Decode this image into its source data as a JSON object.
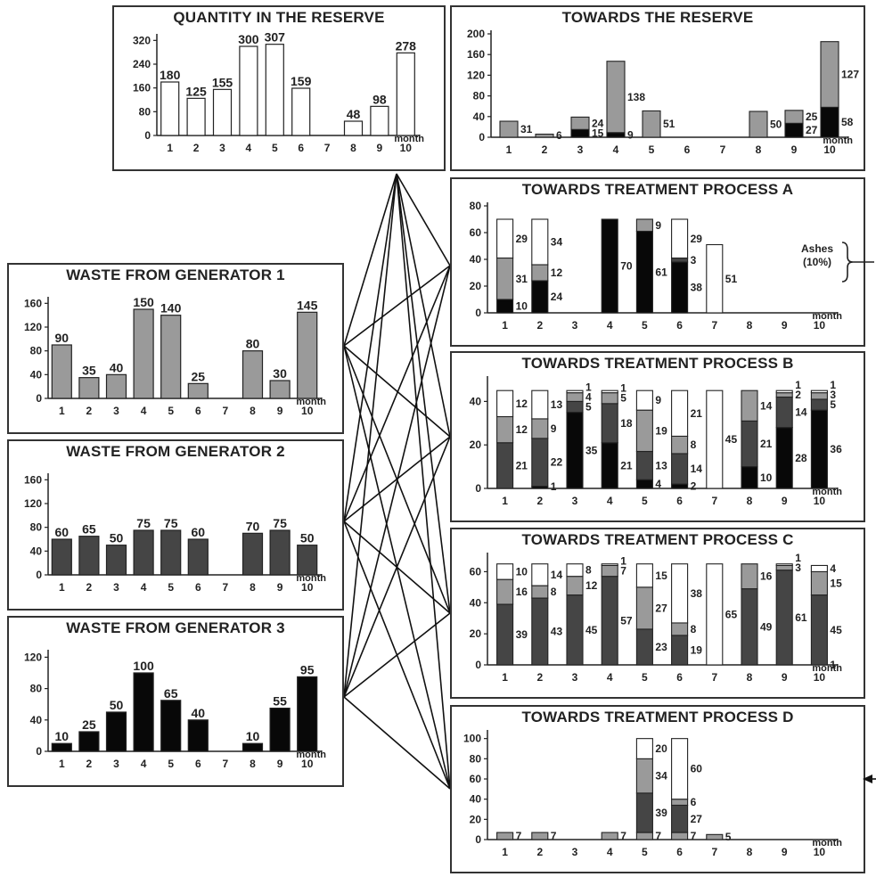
{
  "month_label": "month",
  "ashes_note": {
    "label": "Ashes",
    "percent": "(10%)"
  },
  "colors": {
    "white": "#ffffff",
    "gray": "#9a9a9a",
    "dark": "#454545",
    "black": "#080808",
    "stroke": "#222222"
  },
  "chart_data": [
    {
      "id": "reserve_qty",
      "type": "bar",
      "title": "QUANTITY IN THE RESERVE",
      "categories": [
        "1",
        "2",
        "3",
        "4",
        "5",
        "6",
        "7",
        "8",
        "9",
        "10"
      ],
      "yticks": [
        0,
        80,
        160,
        240,
        320
      ],
      "ylim": [
        0,
        330
      ],
      "xlabel": "month",
      "series": [
        {
          "color": "white",
          "values": [
            180,
            125,
            155,
            300,
            307,
            159,
            null,
            48,
            98,
            278
          ],
          "labels": [
            "180",
            "125",
            "155",
            "300",
            "307",
            "159",
            null,
            "48",
            "98",
            "278"
          ]
        }
      ]
    },
    {
      "id": "gen1",
      "type": "bar",
      "title": "WASTE FROM GENERATOR 1",
      "categories": [
        "1",
        "2",
        "3",
        "4",
        "5",
        "6",
        "7",
        "8",
        "9",
        "10"
      ],
      "yticks": [
        0,
        40,
        80,
        120,
        160
      ],
      "ylim": [
        0,
        165
      ],
      "xlabel": "month",
      "series": [
        {
          "color": "gray",
          "values": [
            90,
            35,
            40,
            150,
            140,
            25,
            null,
            80,
            30,
            145
          ],
          "labels": [
            "90",
            "35",
            "40",
            "150",
            "140",
            "25",
            null,
            "80",
            "30",
            "145"
          ]
        }
      ]
    },
    {
      "id": "gen2",
      "type": "bar",
      "title": "WASTE FROM GENERATOR 2",
      "categories": [
        "1",
        "2",
        "3",
        "4",
        "5",
        "6",
        "7",
        "8",
        "9",
        "10"
      ],
      "yticks": [
        0,
        40,
        80,
        120,
        160
      ],
      "ylim": [
        0,
        165
      ],
      "xlabel": "month",
      "series": [
        {
          "color": "dark",
          "values": [
            60,
            65,
            50,
            75,
            75,
            60,
            null,
            70,
            75,
            50
          ],
          "labels": [
            "60",
            "65",
            "50",
            "75",
            "75",
            "60",
            null,
            "70",
            "75",
            "50"
          ]
        }
      ]
    },
    {
      "id": "gen3",
      "type": "bar",
      "title": "WASTE FROM GENERATOR 3",
      "categories": [
        "1",
        "2",
        "3",
        "4",
        "5",
        "6",
        "7",
        "8",
        "9",
        "10"
      ],
      "yticks": [
        0,
        40,
        80,
        120
      ],
      "ylim": [
        0,
        125
      ],
      "xlabel": "month",
      "series": [
        {
          "color": "black",
          "values": [
            10,
            25,
            50,
            100,
            65,
            40,
            null,
            10,
            55,
            95
          ],
          "labels": [
            "10",
            "25",
            "50",
            "100",
            "65",
            "40",
            null,
            "10",
            "55",
            "95"
          ]
        }
      ]
    },
    {
      "id": "to_reserve",
      "type": "bar",
      "stacked": true,
      "title": "TOWARDS THE RESERVE",
      "categories": [
        "1",
        "2",
        "3",
        "4",
        "5",
        "6",
        "7",
        "8",
        "9",
        "10"
      ],
      "yticks": [
        0,
        40,
        80,
        120,
        160,
        200
      ],
      "ylim": [
        0,
        200
      ],
      "xlabel": "month",
      "series": [
        {
          "color": "black",
          "values": [
            0,
            0,
            15,
            9,
            0,
            0,
            0,
            0,
            27,
            58
          ],
          "labels": [
            null,
            null,
            "15",
            "9",
            null,
            null,
            null,
            null,
            "27",
            "58"
          ]
        },
        {
          "color": "gray",
          "values": [
            31,
            6,
            24,
            138,
            51,
            0,
            0,
            50,
            25,
            127
          ],
          "labels": [
            "31",
            "6",
            "24",
            "138",
            "51",
            null,
            null,
            "50",
            "25",
            "127"
          ]
        }
      ]
    },
    {
      "id": "to_A",
      "type": "bar",
      "stacked": true,
      "title": "TOWARDS TREATMENT PROCESS A",
      "categories": [
        "1",
        "2",
        "3",
        "4",
        "5",
        "6",
        "7",
        "8",
        "9",
        "10"
      ],
      "yticks": [
        0,
        20,
        40,
        60,
        80
      ],
      "ylim": [
        0,
        80
      ],
      "xlabel": "month",
      "series": [
        {
          "color": "black",
          "values": [
            10,
            24,
            0,
            70,
            61,
            38,
            0,
            0,
            0,
            0
          ],
          "labels": [
            "10",
            "24",
            null,
            "70",
            "61",
            "38",
            null,
            null,
            null,
            null
          ]
        },
        {
          "color": "dark",
          "values": [
            0,
            0,
            0,
            0,
            0,
            3,
            0,
            0,
            0,
            0
          ],
          "labels": [
            null,
            null,
            null,
            null,
            null,
            "3",
            null,
            null,
            null,
            null
          ]
        },
        {
          "color": "gray",
          "values": [
            31,
            12,
            0,
            0,
            9,
            0,
            0,
            0,
            0,
            0
          ],
          "labels": [
            "31",
            "12",
            null,
            null,
            "9",
            null,
            null,
            null,
            null,
            null
          ]
        },
        {
          "color": "white",
          "values": [
            29,
            34,
            0,
            0,
            0,
            29,
            51,
            0,
            0,
            0
          ],
          "labels": [
            "29",
            "34",
            null,
            null,
            null,
            "29",
            "51",
            null,
            null,
            null
          ]
        }
      ]
    },
    {
      "id": "to_B",
      "type": "bar",
      "stacked": true,
      "title": "TOWARDS TREATMENT PROCESS B",
      "categories": [
        "1",
        "2",
        "3",
        "4",
        "5",
        "6",
        "7",
        "8",
        "9",
        "10"
      ],
      "yticks": [
        0,
        20,
        40
      ],
      "ylim": [
        0,
        50
      ],
      "xlabel": "month",
      "series": [
        {
          "color": "black",
          "values": [
            0,
            1,
            35,
            21,
            4,
            2,
            0,
            10,
            28,
            36
          ],
          "labels": [
            null,
            "1",
            "35",
            "21",
            "4",
            "2",
            null,
            "10",
            "28",
            "36"
          ]
        },
        {
          "color": "dark",
          "values": [
            21,
            22,
            5,
            18,
            13,
            14,
            0,
            21,
            14,
            5
          ],
          "labels": [
            "21",
            "22",
            "5",
            "18",
            "13",
            "14",
            null,
            "21",
            "14",
            "5"
          ]
        },
        {
          "color": "gray",
          "values": [
            12,
            9,
            4,
            5,
            19,
            8,
            0,
            14,
            2,
            3
          ],
          "labels": [
            "12",
            "9",
            "4",
            "5",
            "19",
            "8",
            null,
            "14",
            "2",
            "3"
          ]
        },
        {
          "color": "white",
          "values": [
            12,
            13,
            1,
            1,
            9,
            21,
            45,
            0,
            1,
            1
          ],
          "labels": [
            "12",
            "13",
            "1",
            "1",
            "9",
            "21",
            "45",
            null,
            "1",
            "1"
          ]
        }
      ]
    },
    {
      "id": "to_C",
      "type": "bar",
      "stacked": true,
      "title": "TOWARDS TREATMENT PROCESS C",
      "categories": [
        "1",
        "2",
        "3",
        "4",
        "5",
        "6",
        "7",
        "8",
        "9",
        "10"
      ],
      "yticks": [
        0,
        20,
        40,
        60
      ],
      "ylim": [
        0,
        70
      ],
      "xlabel": "month",
      "series": [
        {
          "color": "dark",
          "values": [
            39,
            43,
            45,
            57,
            23,
            19,
            0,
            49,
            61,
            45
          ],
          "labels": [
            "39",
            "43",
            "45",
            "57",
            "23",
            "19",
            null,
            "49",
            "61",
            "45"
          ]
        },
        {
          "color": "gray",
          "values": [
            16,
            8,
            12,
            7,
            27,
            8,
            0,
            16,
            3,
            15
          ],
          "labels": [
            "16",
            "8",
            "12",
            "7",
            "27",
            "8",
            null,
            "16",
            "3",
            "15"
          ]
        },
        {
          "color": "white",
          "values": [
            10,
            14,
            8,
            1,
            15,
            38,
            65,
            0,
            1,
            4
          ],
          "labels": [
            "10",
            "14",
            "8",
            "1",
            "15",
            "38",
            "65",
            null,
            "1",
            "4"
          ]
        }
      ],
      "extra_labels": [
        {
          "category": "10",
          "text": "1"
        }
      ]
    },
    {
      "id": "to_D",
      "type": "bar",
      "stacked": true,
      "title": "TOWARDS TREATMENT PROCESS D",
      "categories": [
        "1",
        "2",
        "3",
        "4",
        "5",
        "6",
        "7",
        "8",
        "9",
        "10"
      ],
      "yticks": [
        0,
        20,
        40,
        60,
        80,
        100
      ],
      "ylim": [
        0,
        105
      ],
      "xlabel": "month",
      "series": [
        {
          "color": "gray",
          "values": [
            7,
            7,
            0,
            7,
            7,
            7,
            5,
            0,
            0,
            0
          ],
          "labels": [
            "7",
            "7",
            null,
            "7",
            "7",
            "7",
            "5",
            null,
            null,
            null
          ]
        },
        {
          "color": "dark",
          "values": [
            0,
            0,
            0,
            0,
            39,
            27,
            0,
            0,
            0,
            0
          ],
          "labels": [
            null,
            null,
            null,
            null,
            "39",
            "27",
            null,
            null,
            null,
            null
          ]
        },
        {
          "color": "gray",
          "values": [
            0,
            0,
            0,
            0,
            34,
            6,
            0,
            0,
            0,
            0
          ],
          "labels": [
            null,
            null,
            null,
            null,
            "34",
            "6",
            null,
            null,
            null,
            null
          ]
        },
        {
          "color": "white",
          "values": [
            0,
            0,
            0,
            0,
            20,
            60,
            0,
            0,
            0,
            0
          ],
          "labels": [
            null,
            null,
            null,
            null,
            "20",
            "60",
            null,
            null,
            null,
            null
          ]
        }
      ]
    }
  ]
}
